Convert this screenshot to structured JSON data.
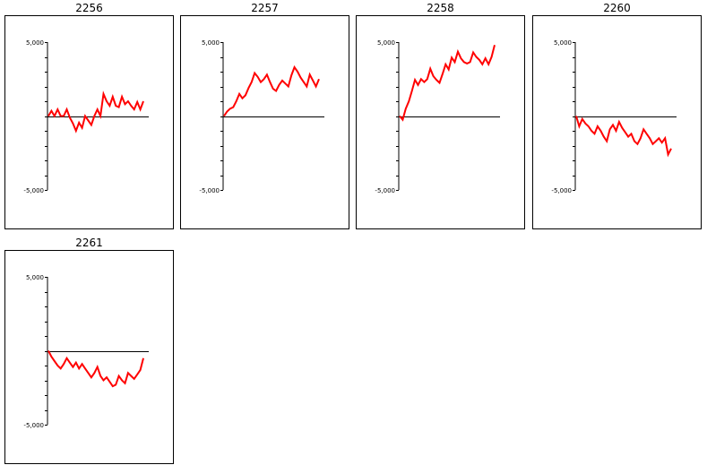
{
  "chart_data": [
    {
      "type": "line",
      "title": "2256",
      "ylim": [
        -5000,
        5000
      ],
      "yticks": [
        5000,
        -5000
      ],
      "ytick_labels": [
        "5,000",
        "-5,000"
      ],
      "series": [
        {
          "color": "#ff0000",
          "x": [
            0,
            1,
            2,
            3,
            4,
            5,
            6,
            7,
            8,
            9,
            10,
            11,
            12,
            13,
            14,
            15,
            16,
            17,
            18,
            19,
            20,
            21,
            22,
            23,
            24,
            25,
            26,
            27,
            28,
            29,
            30,
            31
          ],
          "y": [
            0,
            350,
            0,
            450,
            0,
            0,
            450,
            -100,
            -500,
            -1000,
            -450,
            -800,
            0,
            -300,
            -600,
            0,
            450,
            0,
            1500,
            1000,
            700,
            1300,
            700,
            600,
            1300,
            800,
            1000,
            700,
            450,
            950,
            450,
            1000
          ]
        }
      ]
    },
    {
      "type": "line",
      "title": "2257",
      "ylim": [
        -5000,
        5000
      ],
      "yticks": [
        5000,
        -5000
      ],
      "ytick_labels": [
        "5,000",
        "-5,000"
      ],
      "series": [
        {
          "color": "#ff0000",
          "x": [
            0,
            1,
            2,
            3,
            4,
            5,
            6,
            7,
            8,
            9,
            10,
            11,
            12,
            13,
            14,
            15,
            16,
            17,
            18,
            19,
            20,
            21,
            22,
            23,
            24,
            25,
            26,
            27,
            28,
            29,
            30,
            31
          ],
          "y": [
            0,
            300,
            500,
            600,
            1000,
            1500,
            1200,
            1400,
            1900,
            2300,
            2900,
            2650,
            2300,
            2500,
            2800,
            2300,
            1850,
            1700,
            2100,
            2400,
            2200,
            2000,
            2750,
            3300,
            3000,
            2600,
            2300,
            2000,
            2800,
            2400,
            2000,
            2500
          ]
        }
      ]
    },
    {
      "type": "line",
      "title": "2258",
      "ylim": [
        -5000,
        5000
      ],
      "yticks": [
        5000,
        -5000
      ],
      "ytick_labels": [
        "5,000",
        "-5,000"
      ],
      "series": [
        {
          "color": "#ff0000",
          "x": [
            0,
            1,
            2,
            3,
            4,
            5,
            6,
            7,
            8,
            9,
            10,
            11,
            12,
            13,
            14,
            15,
            16,
            17,
            18,
            19,
            20,
            21,
            22,
            23,
            24,
            25,
            26,
            27,
            28,
            29,
            30,
            31
          ],
          "y": [
            0,
            -250,
            500,
            1000,
            1700,
            2450,
            2100,
            2500,
            2300,
            2500,
            3200,
            2700,
            2450,
            2250,
            2850,
            3500,
            3150,
            3950,
            3650,
            4350,
            3900,
            3650,
            3550,
            3650,
            4300,
            4000,
            3800,
            3500,
            3900,
            3500,
            4000,
            4800
          ]
        }
      ]
    },
    {
      "type": "line",
      "title": "2260",
      "ylim": [
        -5000,
        5000
      ],
      "yticks": [
        5000,
        -5000
      ],
      "ytick_labels": [
        "5,000",
        "-5,000"
      ],
      "series": [
        {
          "color": "#ff0000",
          "x": [
            0,
            1,
            2,
            3,
            4,
            5,
            6,
            7,
            8,
            9,
            10,
            11,
            12,
            13,
            14,
            15,
            16,
            17,
            18,
            19,
            20,
            21,
            22,
            23,
            24,
            25,
            26,
            27,
            28,
            29,
            30,
            31
          ],
          "y": [
            0,
            -700,
            -200,
            -500,
            -700,
            -1000,
            -1200,
            -700,
            -1000,
            -1400,
            -1700,
            -900,
            -600,
            -1000,
            -400,
            -800,
            -1100,
            -1400,
            -1200,
            -1700,
            -1900,
            -1500,
            -900,
            -1200,
            -1500,
            -1900,
            -1700,
            -1500,
            -1800,
            -1500,
            -2600,
            -2200
          ]
        }
      ]
    },
    {
      "type": "line",
      "title": "2261",
      "ylim": [
        -5000,
        5000
      ],
      "yticks": [
        5000,
        -5000
      ],
      "ytick_labels": [
        "5,000",
        "-5,000"
      ],
      "series": [
        {
          "color": "#ff0000",
          "x": [
            0,
            1,
            2,
            3,
            4,
            5,
            6,
            7,
            8,
            9,
            10,
            11,
            12,
            13,
            14,
            15,
            16,
            17,
            18,
            19,
            20,
            21,
            22,
            23,
            24,
            25,
            26,
            27,
            28,
            29,
            30,
            31
          ],
          "y": [
            0,
            -400,
            -700,
            -1000,
            -1200,
            -900,
            -500,
            -800,
            -1100,
            -800,
            -1200,
            -900,
            -1200,
            -1500,
            -1800,
            -1500,
            -1100,
            -1700,
            -2000,
            -1800,
            -2100,
            -2400,
            -2300,
            -1700,
            -2000,
            -2200,
            -1500,
            -1700,
            -1900,
            -1600,
            -1300,
            -500
          ]
        }
      ]
    }
  ]
}
